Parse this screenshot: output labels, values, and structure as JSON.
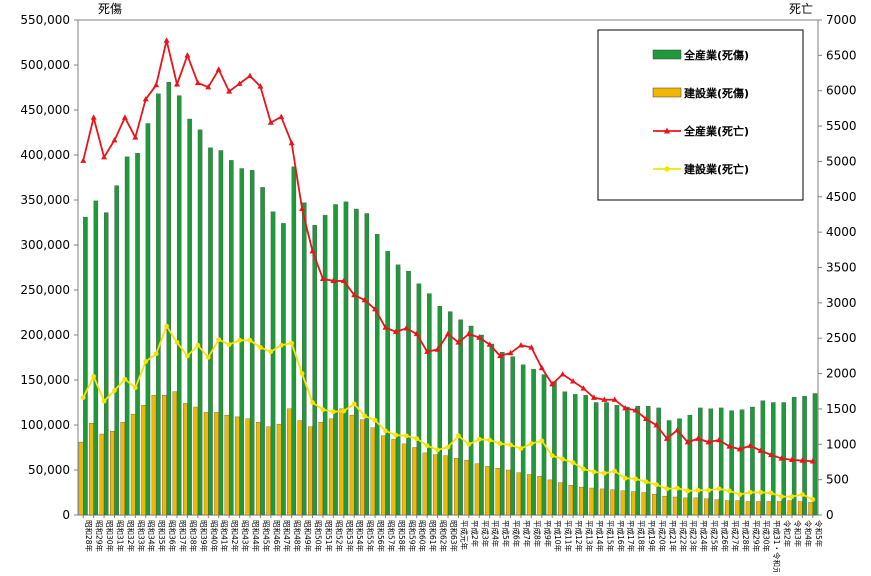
{
  "chart_data": {
    "type": "bar",
    "left_axis_title": "死傷",
    "right_axis_title": "死亡",
    "left_ylim": [
      0,
      550000
    ],
    "left_ticks": [
      "0",
      "50,000",
      "100,000",
      "150,000",
      "200,000",
      "250,000",
      "300,000",
      "350,000",
      "400,000",
      "450,000",
      "500,000",
      "550,000"
    ],
    "right_ylim": [
      0,
      7000
    ],
    "right_ticks": [
      "0",
      "500",
      "1000",
      "1500",
      "2000",
      "2500",
      "3000",
      "3500",
      "4000",
      "4500",
      "5000",
      "5500",
      "6000",
      "6500",
      "7000"
    ],
    "legend_position": "top-right",
    "categories": [
      "昭和28年",
      "昭和29年",
      "昭和30年",
      "昭和31年",
      "昭和32年",
      "昭和33年",
      "昭和34年",
      "昭和35年",
      "昭和36年",
      "昭和37年",
      "昭和38年",
      "昭和39年",
      "昭和40年",
      "昭和41年",
      "昭和42年",
      "昭和43年",
      "昭和44年",
      "昭和45年",
      "昭和46年",
      "昭和47年",
      "昭和48年",
      "昭和49年",
      "昭和50年",
      "昭和51年",
      "昭和52年",
      "昭和53年",
      "昭和54年",
      "昭和55年",
      "昭和56年",
      "昭和57年",
      "昭和58年",
      "昭和59年",
      "昭和60年",
      "昭和61年",
      "昭和62年",
      "昭和63年",
      "平成元年",
      "平成2年",
      "平成3年",
      "平成4年",
      "平成5年",
      "平成6年",
      "平成7年",
      "平成8年",
      "平成9年",
      "平成10年",
      "平成11年",
      "平成12年",
      "平成13年",
      "平成14年",
      "平成15年",
      "平成16年",
      "平成17年",
      "平成18年",
      "平成19年",
      "平成20年",
      "平成21年",
      "平成22年",
      "平成23年",
      "平成24年",
      "平成25年",
      "平成26年",
      "平成27年",
      "平成28年",
      "平成29年",
      "平成30年",
      "平成31・令和元年",
      "令和2年",
      "令和3年",
      "令和4年",
      "令和5年"
    ],
    "series": [
      {
        "name": "全産業(死傷)",
        "axis": "left",
        "kind": "bar",
        "color": "#1f9a3a",
        "values": [
          331000,
          349000,
          336000,
          366000,
          398000,
          402000,
          435000,
          468000,
          481000,
          466000,
          440000,
          428000,
          408000,
          405000,
          394000,
          385000,
          383000,
          364000,
          337000,
          324000,
          387000,
          347000,
          322000,
          333000,
          345000,
          348000,
          340000,
          335000,
          312000,
          293000,
          278000,
          271000,
          257000,
          246000,
          232000,
          226000,
          217000,
          210000,
          200000,
          190000,
          181000,
          176000,
          167000,
          162000,
          156000,
          148000,
          137000,
          134000,
          133000,
          125000,
          125000,
          122000,
          120000,
          121000,
          121000,
          119000,
          105000,
          107000,
          111000,
          119000,
          118000,
          119000,
          116000,
          117000,
          120000,
          127000,
          125000,
          125000,
          131000,
          132000,
          135000
        ]
      },
      {
        "name": "建設業(死傷)",
        "axis": "left",
        "kind": "bar",
        "color": "#f2b800",
        "values": [
          81000,
          102000,
          90000,
          93000,
          103000,
          112000,
          122000,
          133000,
          133000,
          137000,
          124000,
          120000,
          114000,
          114000,
          111000,
          109000,
          107000,
          103000,
          98000,
          101000,
          118000,
          105000,
          98000,
          103000,
          107000,
          118000,
          111000,
          106000,
          97000,
          88000,
          84000,
          79000,
          75000,
          69000,
          67000,
          66000,
          63000,
          61000,
          57000,
          54000,
          52000,
          50000,
          47000,
          45000,
          43000,
          39000,
          36000,
          33000,
          31000,
          30000,
          29000,
          28000,
          27000,
          26000,
          25000,
          23000,
          21000,
          20000,
          19000,
          19000,
          18000,
          17000,
          16000,
          16000,
          15000,
          15000,
          15000,
          15000,
          16000,
          15000,
          14000
        ]
      },
      {
        "name": "全産業(死亡)",
        "axis": "right",
        "kind": "line",
        "color": "#e8151a",
        "values": [
          5010,
          5620,
          5060,
          5300,
          5620,
          5340,
          5880,
          6080,
          6710,
          6090,
          6500,
          6110,
          6050,
          6300,
          5990,
          6100,
          6210,
          6060,
          5550,
          5630,
          5260,
          4330,
          3730,
          3340,
          3310,
          3310,
          3110,
          3040,
          2910,
          2650,
          2590,
          2640,
          2560,
          2310,
          2340,
          2560,
          2440,
          2560,
          2510,
          2410,
          2250,
          2290,
          2400,
          2370,
          2080,
          1850,
          1990,
          1890,
          1790,
          1660,
          1630,
          1630,
          1510,
          1480,
          1360,
          1270,
          1080,
          1200,
          1030,
          1080,
          1030,
          1060,
          970,
          930,
          980,
          910,
          850,
          800,
          780,
          770,
          760
        ]
      },
      {
        "name": "建設業(死亡)",
        "axis": "right",
        "kind": "line",
        "color": "#f5e400",
        "values": [
          1660,
          1960,
          1610,
          1760,
          1920,
          1800,
          2170,
          2280,
          2670,
          2440,
          2250,
          2400,
          2230,
          2480,
          2410,
          2470,
          2470,
          2370,
          2310,
          2400,
          2430,
          2000,
          1590,
          1490,
          1460,
          1470,
          1570,
          1400,
          1340,
          1190,
          1130,
          1120,
          1080,
          980,
          920,
          960,
          1120,
          1000,
          1070,
          1060,
          1010,
          990,
          940,
          1010,
          1050,
          840,
          790,
          740,
          650,
          610,
          590,
          620,
          520,
          510,
          470,
          430,
          370,
          380,
          340,
          350,
          350,
          370,
          340,
          290,
          320,
          320,
          310,
          260,
          260,
          290,
          220
        ]
      }
    ]
  }
}
